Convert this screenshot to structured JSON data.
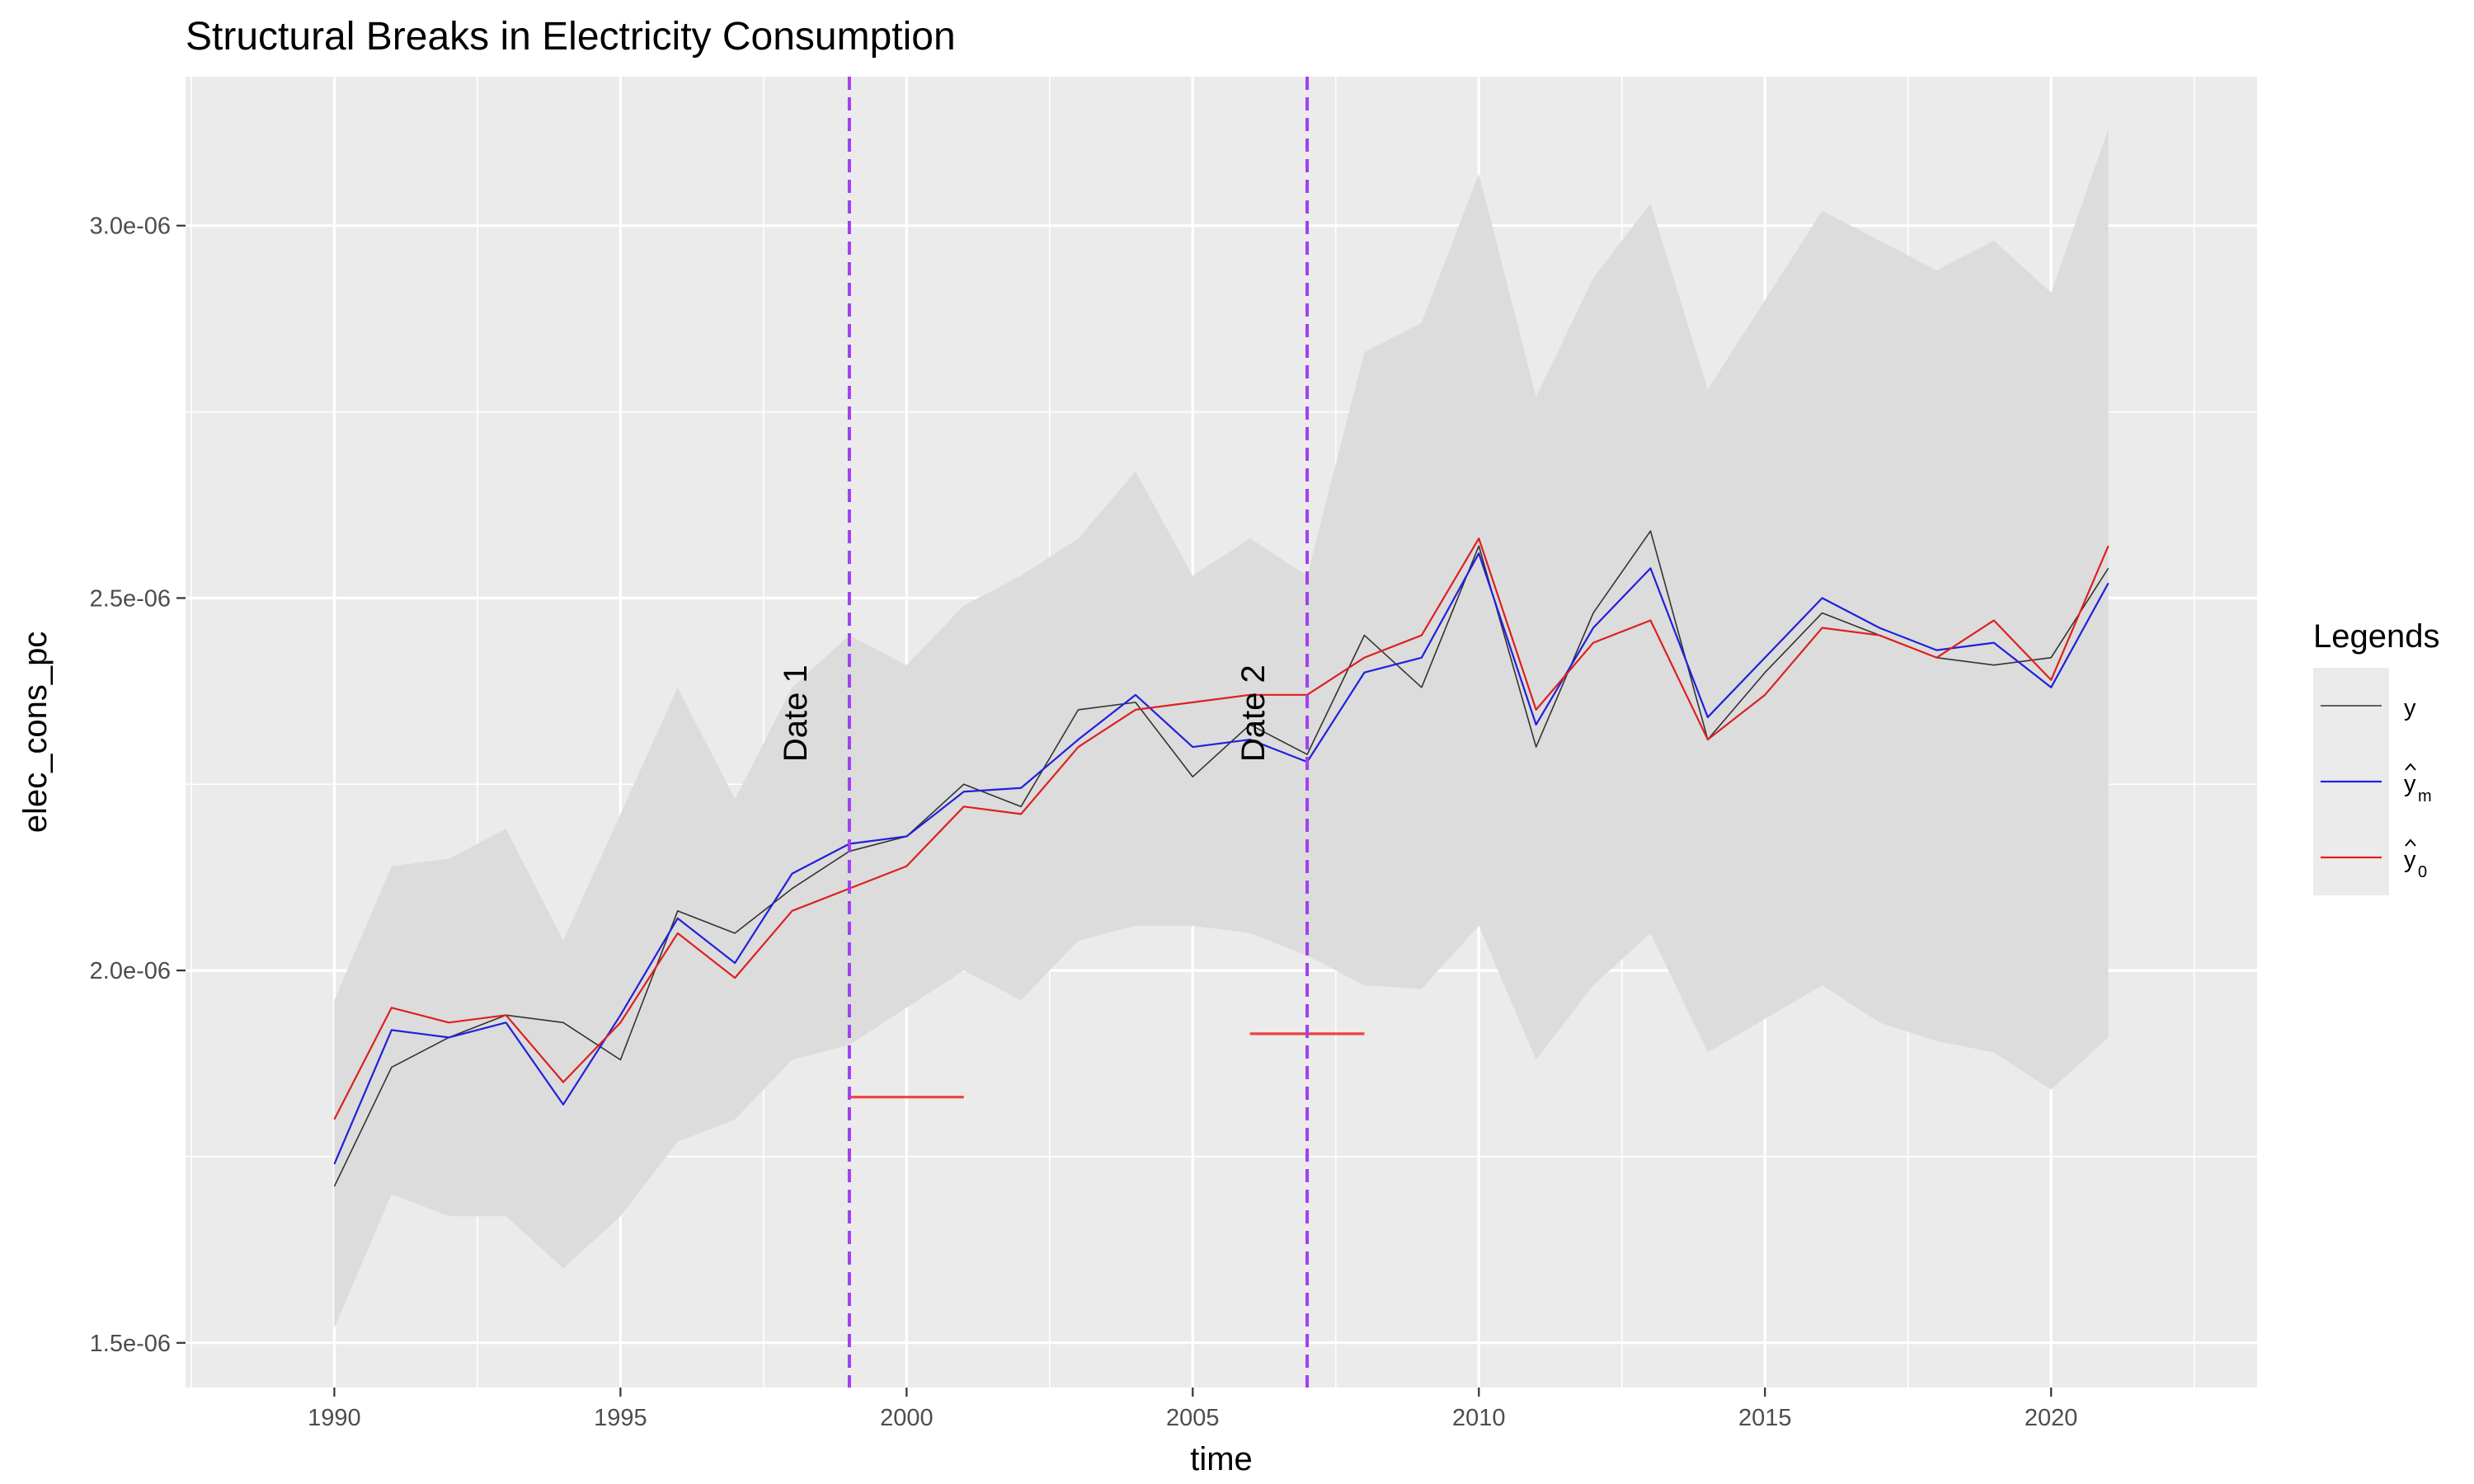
{
  "chart_data": {
    "type": "line",
    "title": "Structural Breaks in Electricity Consumption",
    "xlabel": "time",
    "ylabel": "elec_cons_pc",
    "xlim": [
      1987.4,
      2023.6
    ],
    "ylim": [
      1.44e-06,
      3.2e-06
    ],
    "x_ticks": [
      1990,
      1995,
      2000,
      2005,
      2010,
      2015,
      2020
    ],
    "x_tick_labels": [
      "1990",
      "1995",
      "2000",
      "2005",
      "2010",
      "2015",
      "2020"
    ],
    "y_ticks": [
      1.5e-06,
      2e-06,
      2.5e-06,
      3e-06
    ],
    "y_tick_labels": [
      "1.5e-06",
      "2.0e-06",
      "2.5e-06",
      "3.0e-06"
    ],
    "grid": true,
    "legend": {
      "title": "Legends",
      "placement": "right"
    },
    "x": [
      1990,
      1991,
      1992,
      1993,
      1994,
      1995,
      1996,
      1997,
      1998,
      1999,
      2000,
      2001,
      2002,
      2003,
      2004,
      2005,
      2006,
      2007,
      2008,
      2009,
      2010,
      2011,
      2012,
      2013,
      2014,
      2015,
      2016,
      2017,
      2018,
      2019,
      2020,
      2021
    ],
    "series": [
      {
        "name": "y",
        "legend_base": "y",
        "legend_hat": false,
        "legend_sub": "",
        "color": "#333333",
        "values": [
          1.71,
          1.87,
          1.91,
          1.94,
          1.93,
          1.88,
          2.08,
          2.05,
          2.11,
          2.16,
          2.18,
          2.25,
          2.22,
          2.35,
          2.36,
          2.26,
          2.33,
          2.29,
          2.45,
          2.38,
          2.57,
          2.3,
          2.48,
          2.59,
          2.31,
          2.4,
          2.48,
          2.45,
          2.42,
          2.41,
          2.42,
          2.54
        ]
      },
      {
        "name": "y_m_hat",
        "legend_base": "y",
        "legend_hat": true,
        "legend_sub": "m",
        "color": "#2020dd",
        "values": [
          1.74,
          1.92,
          1.91,
          1.93,
          1.82,
          1.94,
          2.07,
          2.01,
          2.13,
          2.17,
          2.18,
          2.24,
          2.245,
          2.31,
          2.37,
          2.3,
          2.31,
          2.28,
          2.4,
          2.42,
          2.56,
          2.33,
          2.46,
          2.54,
          2.34,
          2.42,
          2.5,
          2.46,
          2.43,
          2.44,
          2.38,
          2.52
        ]
      },
      {
        "name": "y_0_hat",
        "legend_base": "y",
        "legend_hat": true,
        "legend_sub": "0",
        "color": "#dd2020",
        "values": [
          1.8,
          1.95,
          1.93,
          1.94,
          1.85,
          1.93,
          2.05,
          1.99,
          2.08,
          2.11,
          2.14,
          2.22,
          2.21,
          2.3,
          2.35,
          2.36,
          2.37,
          2.37,
          2.42,
          2.45,
          2.58,
          2.35,
          2.44,
          2.47,
          2.31,
          2.37,
          2.46,
          2.45,
          2.42,
          2.47,
          2.39,
          2.57
        ]
      }
    ],
    "values_scale": 1e-06,
    "ribbon": {
      "upper": [
        1.96,
        2.14,
        2.15,
        2.19,
        2.04,
        2.21,
        2.38,
        2.23,
        2.38,
        2.45,
        2.41,
        2.49,
        2.53,
        2.58,
        2.67,
        2.53,
        2.58,
        2.53,
        2.83,
        2.87,
        3.07,
        2.77,
        2.93,
        3.03,
        2.78,
        2.9,
        3.02,
        2.98,
        2.94,
        2.98,
        2.91,
        3.13
      ],
      "lower": [
        1.52,
        1.7,
        1.67,
        1.67,
        1.6,
        1.67,
        1.77,
        1.8,
        1.88,
        1.9,
        1.95,
        2.0,
        1.96,
        2.04,
        2.06,
        2.06,
        2.05,
        2.02,
        1.98,
        1.975,
        2.06,
        1.88,
        1.98,
        2.05,
        1.89,
        1.935,
        1.98,
        1.93,
        1.905,
        1.89,
        1.84,
        1.91
      ],
      "color": "#dcdcdc"
    },
    "breaks": [
      {
        "label": "Date 1",
        "x": 1999,
        "ci": [
          1999,
          2001
        ],
        "ci_y": 1.83
      },
      {
        "label": "Date 2",
        "x": 2007,
        "ci": [
          2006,
          2008
        ],
        "ci_y": 1.915
      }
    ],
    "break_line_color": "#a040f0",
    "ci_color": "#ee4040"
  }
}
